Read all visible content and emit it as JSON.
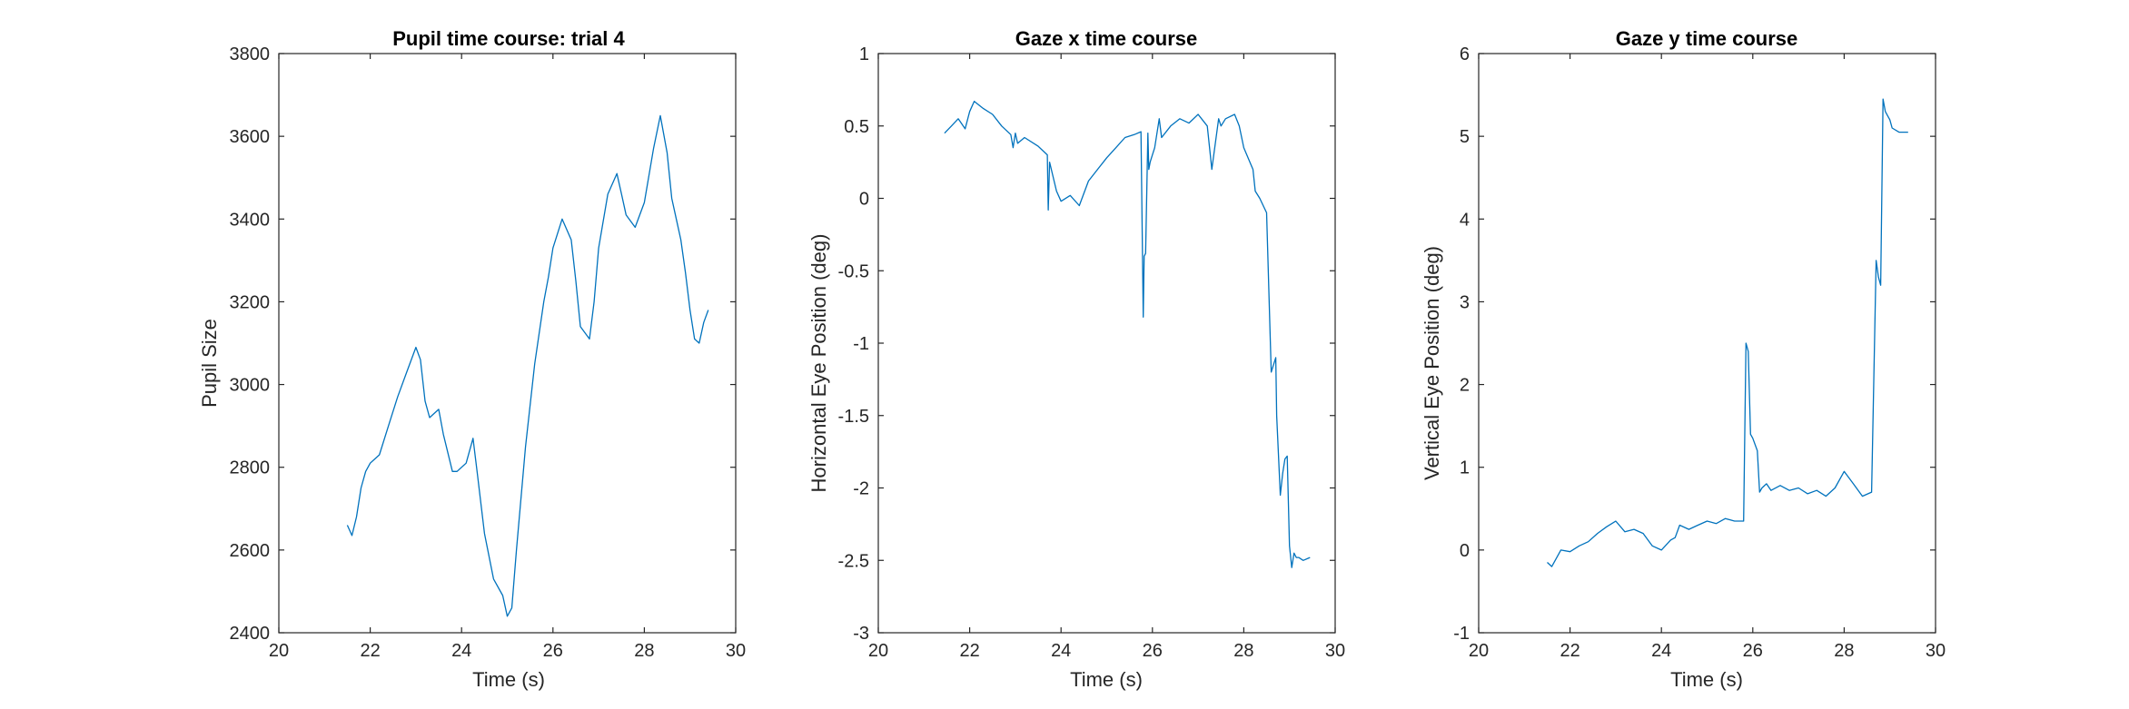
{
  "chart_data": [
    {
      "type": "line",
      "title": "Pupil time course: trial 4",
      "xlabel": "Time (s)",
      "ylabel": "Pupil Size",
      "xlim": [
        20,
        30
      ],
      "ylim": [
        2400,
        3800
      ],
      "xticks": [
        20,
        22,
        24,
        26,
        28,
        30
      ],
      "yticks": [
        2400,
        2600,
        2800,
        3000,
        3200,
        3400,
        3600,
        3800
      ],
      "grid": false,
      "color": "#0072BD",
      "series": [
        {
          "x": [
            21.5,
            21.6,
            21.7,
            21.8,
            21.9,
            22.0,
            22.2,
            22.4,
            22.6,
            22.8,
            23.0,
            23.1,
            23.2,
            23.3,
            23.5,
            23.6,
            23.8,
            23.9,
            24.1,
            24.25,
            24.35,
            24.5,
            24.7,
            24.9,
            25.0,
            25.1,
            25.2,
            25.4,
            25.6,
            25.8,
            25.9,
            26.0,
            26.2,
            26.4,
            26.5,
            26.6,
            26.8,
            26.9,
            27.0,
            27.2,
            27.4,
            27.5,
            27.6,
            27.8,
            28.0,
            28.2,
            28.35,
            28.5,
            28.6,
            28.7,
            28.8,
            28.9,
            29.0,
            29.1,
            29.2,
            29.3,
            29.4
          ],
          "y": [
            2660,
            2635,
            2680,
            2750,
            2790,
            2810,
            2830,
            2900,
            2970,
            3030,
            3090,
            3060,
            2960,
            2920,
            2940,
            2880,
            2790,
            2790,
            2810,
            2870,
            2780,
            2640,
            2530,
            2490,
            2440,
            2460,
            2600,
            2850,
            3050,
            3200,
            3260,
            3330,
            3400,
            3350,
            3250,
            3140,
            3110,
            3200,
            3330,
            3460,
            3510,
            3460,
            3410,
            3380,
            3440,
            3570,
            3650,
            3560,
            3450,
            3400,
            3350,
            3270,
            3180,
            3110,
            3100,
            3150,
            3180
          ]
        }
      ]
    },
    {
      "type": "line",
      "title": "Gaze x time course",
      "xlabel": "Time (s)",
      "ylabel": "Horizontal Eye Position (deg)",
      "xlim": [
        20,
        30
      ],
      "ylim": [
        -3,
        1
      ],
      "xticks": [
        20,
        22,
        24,
        26,
        28,
        30
      ],
      "yticks": [
        -3,
        -2.5,
        -2,
        -1.5,
        -1,
        -0.5,
        0,
        0.5,
        1
      ],
      "grid": false,
      "color": "#0072BD",
      "series": [
        {
          "x": [
            21.45,
            21.6,
            21.75,
            21.9,
            22.0,
            22.1,
            22.3,
            22.5,
            22.7,
            22.9,
            22.95,
            23.0,
            23.05,
            23.2,
            23.5,
            23.7,
            23.72,
            23.75,
            23.9,
            24.0,
            24.2,
            24.4,
            24.6,
            24.8,
            25.0,
            25.2,
            25.4,
            25.6,
            25.75,
            25.8,
            25.82,
            25.85,
            25.9,
            25.92,
            25.95,
            26.0,
            26.05,
            26.15,
            26.2,
            26.4,
            26.6,
            26.8,
            27.0,
            27.2,
            27.3,
            27.45,
            27.5,
            27.6,
            27.8,
            27.9,
            28.0,
            28.2,
            28.25,
            28.35,
            28.5,
            28.6,
            28.7,
            28.72,
            28.8,
            28.85,
            28.9,
            28.95,
            29.0,
            29.05,
            29.1,
            29.15,
            29.2,
            29.3,
            29.45
          ],
          "y": [
            0.45,
            0.5,
            0.55,
            0.48,
            0.6,
            0.67,
            0.62,
            0.58,
            0.5,
            0.44,
            0.35,
            0.45,
            0.38,
            0.42,
            0.36,
            0.3,
            -0.08,
            0.25,
            0.05,
            -0.02,
            0.02,
            -0.05,
            0.12,
            0.2,
            0.28,
            0.35,
            0.42,
            0.44,
            0.46,
            -0.82,
            -0.4,
            -0.38,
            0.45,
            0.2,
            0.25,
            0.3,
            0.35,
            0.55,
            0.42,
            0.5,
            0.55,
            0.52,
            0.58,
            0.5,
            0.2,
            0.55,
            0.5,
            0.55,
            0.58,
            0.5,
            0.35,
            0.2,
            0.05,
            0.0,
            -0.1,
            -1.2,
            -1.1,
            -1.5,
            -2.05,
            -1.9,
            -1.8,
            -1.78,
            -2.4,
            -2.55,
            -2.45,
            -2.48,
            -2.48,
            -2.5,
            -2.48
          ]
        }
      ]
    },
    {
      "type": "line",
      "title": "Gaze y time course",
      "xlabel": "Time (s)",
      "ylabel": "Vertical Eye Position (deg)",
      "xlim": [
        20,
        30
      ],
      "ylim": [
        -1,
        6
      ],
      "xticks": [
        20,
        22,
        24,
        26,
        28,
        30
      ],
      "yticks": [
        -1,
        0,
        1,
        2,
        3,
        4,
        5,
        6
      ],
      "grid": false,
      "color": "#0072BD",
      "series": [
        {
          "x": [
            21.5,
            21.6,
            21.8,
            22.0,
            22.2,
            22.4,
            22.6,
            22.8,
            23.0,
            23.2,
            23.4,
            23.6,
            23.8,
            24.0,
            24.2,
            24.3,
            24.4,
            24.6,
            24.8,
            25.0,
            25.2,
            25.4,
            25.6,
            25.8,
            25.85,
            25.9,
            25.95,
            26.0,
            26.1,
            26.15,
            26.2,
            26.3,
            26.4,
            26.6,
            26.8,
            27.0,
            27.2,
            27.4,
            27.6,
            27.8,
            28.0,
            28.2,
            28.4,
            28.6,
            28.7,
            28.75,
            28.8,
            28.85,
            28.9,
            28.95,
            29.0,
            29.05,
            29.2,
            29.4
          ],
          "y": [
            -0.15,
            -0.2,
            0.0,
            -0.02,
            0.05,
            0.1,
            0.2,
            0.28,
            0.35,
            0.22,
            0.25,
            0.2,
            0.05,
            0.0,
            0.12,
            0.15,
            0.3,
            0.25,
            0.3,
            0.35,
            0.32,
            0.38,
            0.35,
            0.35,
            2.5,
            2.4,
            1.4,
            1.35,
            1.2,
            0.7,
            0.75,
            0.8,
            0.72,
            0.78,
            0.72,
            0.75,
            0.68,
            0.72,
            0.65,
            0.75,
            0.95,
            0.8,
            0.65,
            0.7,
            3.5,
            3.3,
            3.2,
            5.45,
            5.3,
            5.25,
            5.2,
            5.1,
            5.05,
            5.05
          ]
        }
      ]
    }
  ]
}
